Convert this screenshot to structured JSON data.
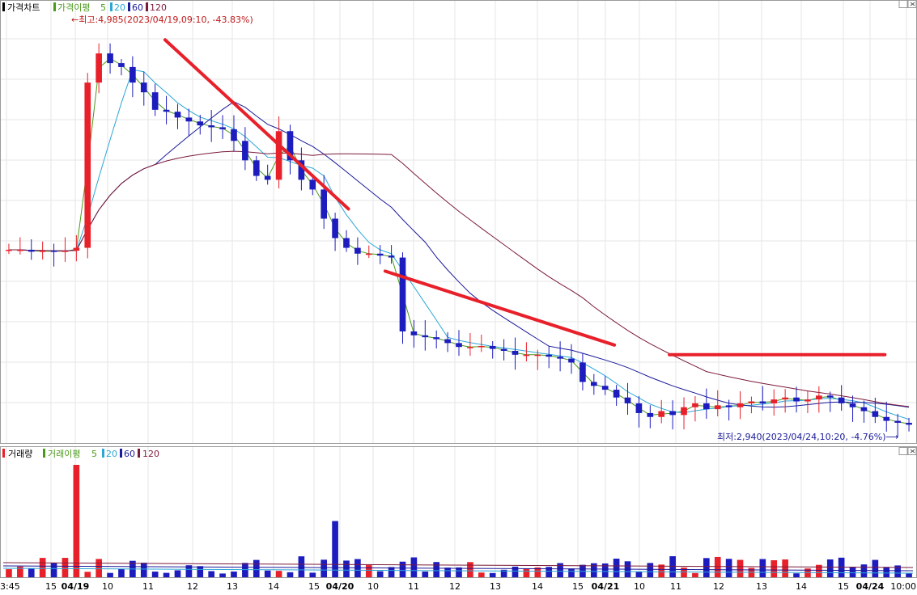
{
  "price_panel": {
    "title": "가격차트",
    "legend_label": "가격이평",
    "ma_periods": [
      "5",
      "20",
      "60",
      "120"
    ],
    "high_annotation": "←최고:4,985(2023/04/19,09:10, -43.83%)",
    "low_annotation": "최저:2,940(2023/04/24,10:20, -4.76%)⟶"
  },
  "volume_panel": {
    "title": "거래량",
    "legend_label": "거래이평",
    "ma_periods": [
      "5",
      "20",
      "60",
      "120"
    ]
  },
  "colors": {
    "up": "#e8202a",
    "down": "#1c1cbf",
    "ma5": "#4a9a1a",
    "ma20": "#2aa7d6",
    "ma60": "#1a1a9a",
    "ma120": "#7a1a3a",
    "trendline": "#e8202a",
    "grid": "#e6e6e6"
  },
  "chart_data": {
    "type": "candlestick",
    "x_tick_labels": [
      "3:45",
      "15",
      "04/19",
      "10",
      "11",
      "12",
      "13",
      "14",
      "15",
      "04/20",
      "10",
      "11",
      "12",
      "13",
      "14",
      "15",
      "04/21",
      "10",
      "11",
      "12",
      "13",
      "14",
      "15",
      "04/24",
      "10:00"
    ],
    "bold_ticks": [
      "04/19",
      "04/20",
      "04/21",
      "04/24"
    ],
    "price_high": 4985,
    "price_low": 2940,
    "price_close_approx": [
      3840,
      3840,
      3830,
      3835,
      3830,
      3835,
      3850,
      4700,
      4850,
      4800,
      4780,
      4700,
      4650,
      4560,
      4550,
      4520,
      4500,
      4480,
      4470,
      4460,
      4400,
      4300,
      4220,
      4200,
      4450,
      4300,
      4200,
      4150,
      4000,
      3900,
      3850,
      3820,
      3820,
      3810,
      3800,
      3420,
      3400,
      3390,
      3380,
      3360,
      3340,
      3340,
      3345,
      3330,
      3320,
      3300,
      3300,
      3300,
      3290,
      3280,
      3260,
      3160,
      3140,
      3120,
      3080,
      3050,
      3000,
      2980,
      3010,
      2990,
      3030,
      3050,
      3020,
      3040,
      3030,
      3050,
      3060,
      3050,
      3070,
      3080,
      3060,
      3070,
      3090,
      3080,
      3050,
      3030,
      3010,
      2980,
      2960,
      2950,
      2940
    ],
    "volume_spikes": [
      {
        "x_label": "04/19",
        "relative_height": 1.0
      },
      {
        "x_label": "04/20",
        "relative_height": 0.5
      }
    ],
    "trendlines": [
      {
        "from_x_fraction": 0.18,
        "from_price": 4920,
        "to_x_fraction": 0.38,
        "to_price": 4050
      },
      {
        "from_x_fraction": 0.42,
        "from_price": 3730,
        "to_x_fraction": 0.67,
        "to_price": 3350
      },
      {
        "from_x_fraction": 0.73,
        "from_price": 3300,
        "to_x_fraction": 0.965,
        "to_price": 3300
      }
    ],
    "grid": true
  }
}
